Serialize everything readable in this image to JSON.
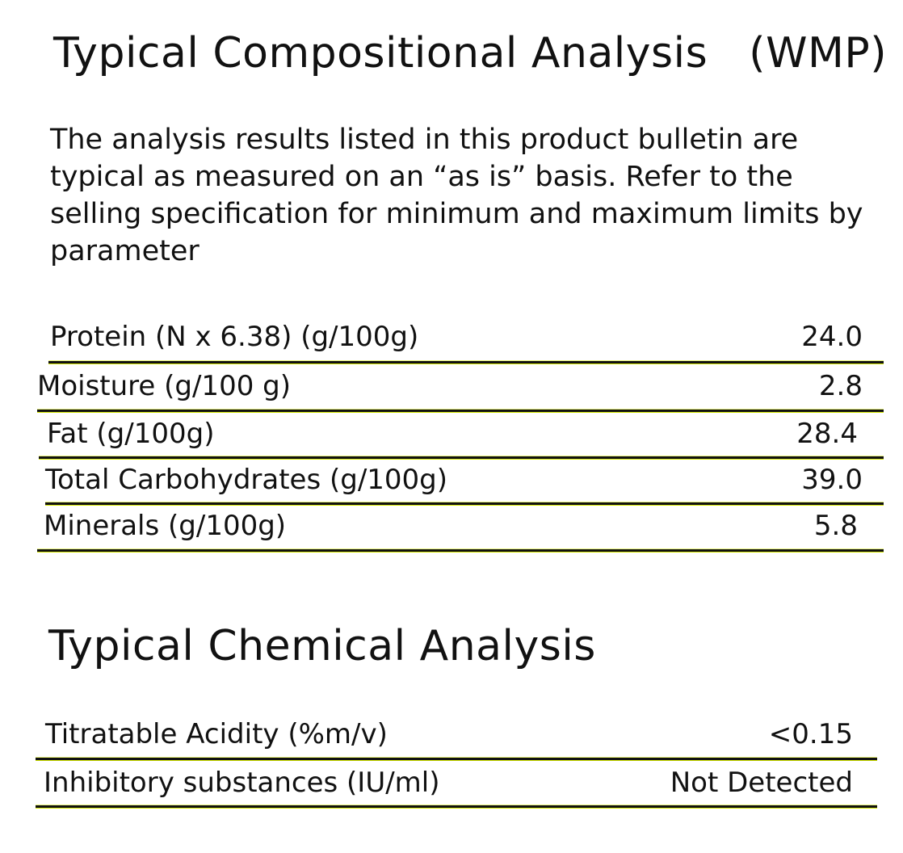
{
  "compositional": {
    "title": "Typical Compositional Analysis",
    "product_code": "(WMP)",
    "intro": "The analysis results listed in this product bulletin are typical as measured on an “as is” basis. Refer to the selling specification for minimum and maximum limits by parameter",
    "rows": [
      {
        "label": "Protein (N x 6.38) (g/100g)",
        "value": "24.0"
      },
      {
        "label": "Moisture (g/100 g)",
        "value": "2.8"
      },
      {
        "label": "Fat  (g/100g)",
        "value": "28.4"
      },
      {
        "label": "Total Carbohydrates (g/100g)",
        "value": "39.0"
      },
      {
        "label": "Minerals (g/100g)",
        "value": "5.8"
      }
    ]
  },
  "chemical": {
    "title": "Typical Chemical Analysis",
    "rows": [
      {
        "label": "Titratable Acidity (%m/v)",
        "value": "<0.15"
      },
      {
        "label": "Inhibitory substances (IU/ml)",
        "value": "Not Detected"
      }
    ]
  }
}
